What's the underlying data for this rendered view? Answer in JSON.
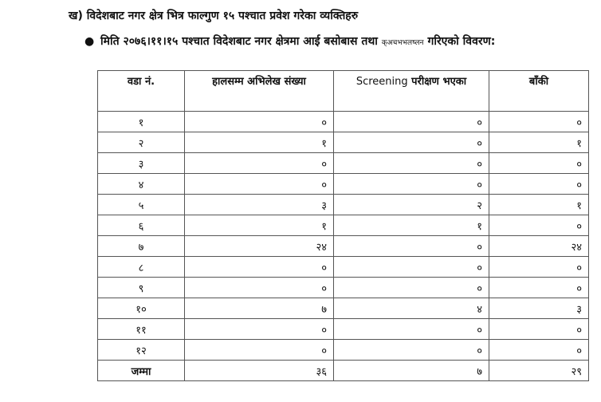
{
  "heading": "ख) विदेशबाट नगर क्षेत्र भित्र फाल्गुण १५ पश्चात प्रवेश गरेका व्यक्तिहरु",
  "bullet": {
    "text_main": "मिति २०७६।११।१५ पश्चात विदेशबाट नगर क्षेत्रमा आई बसोबास तथा",
    "text_small": "क्अचभभलष्लन",
    "text_end": "गरिएको विवरण:"
  },
  "table": {
    "headers": {
      "ward": "वडा नं.",
      "recorded": "हालसम्म अभिलेख संख्या",
      "screened_en": "Screening",
      "screened_np": "परीक्षण भएका",
      "remaining": "बाँकी"
    },
    "rows": [
      {
        "ward": "१",
        "recorded": "०",
        "screened": "०",
        "remaining": "०"
      },
      {
        "ward": "२",
        "recorded": "१",
        "screened": "०",
        "remaining": "१"
      },
      {
        "ward": "३",
        "recorded": "०",
        "screened": "०",
        "remaining": "०"
      },
      {
        "ward": "४",
        "recorded": "०",
        "screened": "०",
        "remaining": "०"
      },
      {
        "ward": "५",
        "recorded": "३",
        "screened": "२",
        "remaining": "१"
      },
      {
        "ward": "६",
        "recorded": "१",
        "screened": "१",
        "remaining": "०"
      },
      {
        "ward": "७",
        "recorded": "२४",
        "screened": "०",
        "remaining": "२४"
      },
      {
        "ward": "८",
        "recorded": "०",
        "screened": "०",
        "remaining": "०"
      },
      {
        "ward": "९",
        "recorded": "०",
        "screened": "०",
        "remaining": "०"
      },
      {
        "ward": "१०",
        "recorded": "७",
        "screened": "४",
        "remaining": "३"
      },
      {
        "ward": "११",
        "recorded": "०",
        "screened": "०",
        "remaining": "०"
      },
      {
        "ward": "१२",
        "recorded": "०",
        "screened": "०",
        "remaining": "०"
      }
    ],
    "total": {
      "ward": "जम्मा",
      "recorded": "३६",
      "screened": "७",
      "remaining": "२९"
    }
  }
}
